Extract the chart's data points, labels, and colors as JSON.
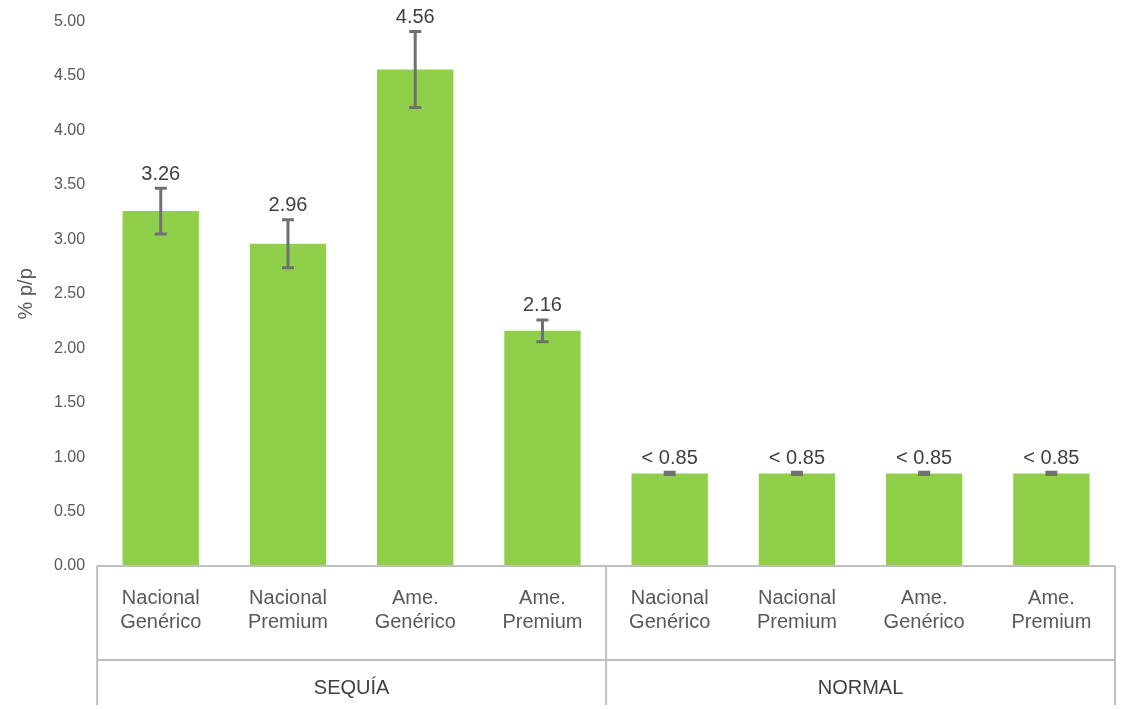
{
  "chart_data": {
    "type": "bar",
    "ylabel": "% p/p",
    "categories": [
      "Nacional Genérico",
      "Nacional Premium",
      "Ame. Genérico",
      "Ame. Premium",
      "Nacional Genérico",
      "Nacional Premium",
      "Ame. Genérico",
      "Ame. Premium"
    ],
    "values": [
      3.26,
      2.96,
      4.56,
      2.16,
      0.85,
      0.85,
      0.85,
      0.85
    ],
    "errors": [
      0.21,
      0.22,
      0.35,
      0.1,
      0.01,
      0.01,
      0.01,
      0.01
    ],
    "value_labels": [
      "3.26",
      "2.96",
      "4.56",
      "2.16",
      "< 0.85",
      "< 0.85",
      "< 0.85",
      "< 0.85"
    ],
    "color": "#8fcf4a",
    "ylim": [
      0,
      5
    ],
    "yticks": [
      {
        "value": 0,
        "label": "0.00"
      },
      {
        "value": 0.5,
        "label": "0.50"
      },
      {
        "value": 1,
        "label": "1.00"
      },
      {
        "value": 1.5,
        "label": "1.50"
      },
      {
        "value": 2,
        "label": "2.00"
      },
      {
        "value": 2.5,
        "label": "2.50"
      },
      {
        "value": 3,
        "label": "3.00"
      },
      {
        "value": 3.5,
        "label": "3.50"
      },
      {
        "value": 4,
        "label": "4.00"
      },
      {
        "value": 4.5,
        "label": "4.50"
      },
      {
        "value": 5,
        "label": "5.00"
      }
    ],
    "annotations": [
      "SEQUÍA",
      "NORMAL"
    ],
    "grid": false,
    "legend": false
  }
}
